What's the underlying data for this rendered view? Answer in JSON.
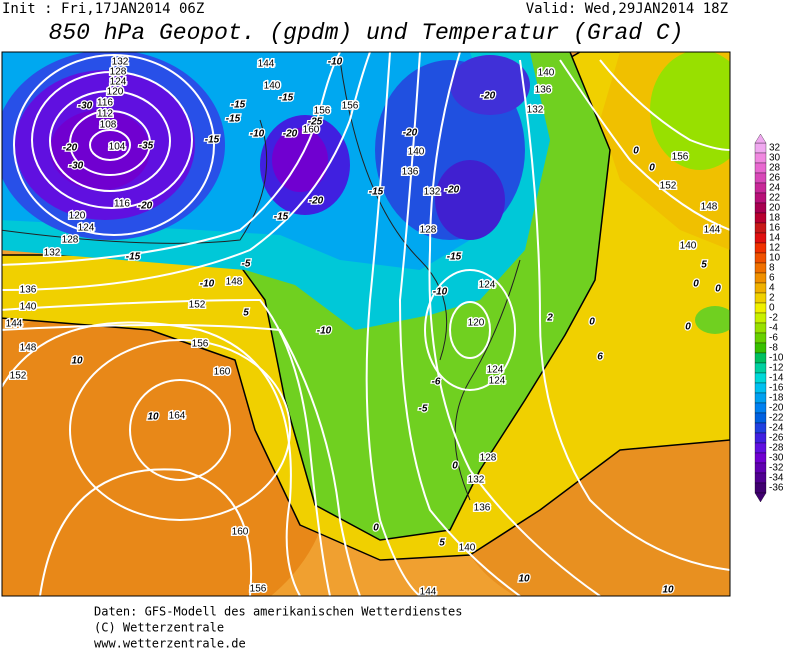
{
  "header": {
    "init": "Init : Fri,17JAN2014 06Z",
    "valid": "Valid: Wed,29JAN2014 18Z",
    "title": "850 hPa Geopot. (gpdm) und Temperatur (Grad C)"
  },
  "map": {
    "geopotential_labels": [
      132,
      128,
      124,
      120,
      116,
      112,
      108,
      104,
      116,
      120,
      124,
      128,
      132,
      136,
      140,
      144,
      148,
      152,
      156,
      160,
      164,
      160,
      156,
      144,
      140,
      156,
      160,
      156,
      140,
      136,
      132,
      140,
      136,
      132,
      128,
      124,
      120,
      124,
      124,
      128,
      132,
      136,
      140,
      144,
      156,
      152,
      148,
      144,
      140,
      148,
      152
    ],
    "temperature_labels": [
      -10,
      -15,
      -15,
      -15,
      -10,
      -15,
      -25,
      -20,
      -20,
      -15,
      -20,
      -20,
      -20,
      -15,
      -15,
      -10,
      -10,
      -6,
      -5,
      0,
      0,
      5,
      10,
      10,
      10,
      10,
      -15,
      -10,
      -5,
      5,
      0,
      0,
      0,
      0,
      5,
      0,
      2,
      0,
      6,
      -20,
      -30,
      -35,
      -20,
      -30
    ]
  },
  "colorbar": {
    "ticks": [
      32,
      30,
      28,
      26,
      24,
      22,
      20,
      18,
      16,
      14,
      12,
      10,
      8,
      6,
      4,
      2,
      0,
      -2,
      -4,
      -6,
      -8,
      -10,
      -12,
      -14,
      -16,
      -18,
      -20,
      -22,
      -24,
      -26,
      -28,
      -30,
      -32,
      -34,
      -36
    ],
    "colors": [
      "#f0a8f0",
      "#f088e0",
      "#e868d0",
      "#d848b8",
      "#c82898",
      "#b81078",
      "#a80050",
      "#b80030",
      "#c81818",
      "#e01010",
      "#f03000",
      "#f05000",
      "#f07000",
      "#f09000",
      "#f0b000",
      "#f0d000",
      "#f0f000",
      "#c8f000",
      "#98e000",
      "#68d000",
      "#38c000",
      "#00c060",
      "#00d0a0",
      "#00d8d8",
      "#00c0f0",
      "#00a0f0",
      "#0080f0",
      "#0060e0",
      "#2040e0",
      "#4020e0",
      "#6010e0",
      "#7000d0",
      "#6000b0",
      "#500090",
      "#400070"
    ]
  },
  "footer": {
    "lines": [
      "Daten: GFS-Modell des amerikanischen Wetterdienstes",
      "(C) Wetterzentrale",
      "www.wetterzentrale.de"
    ]
  }
}
